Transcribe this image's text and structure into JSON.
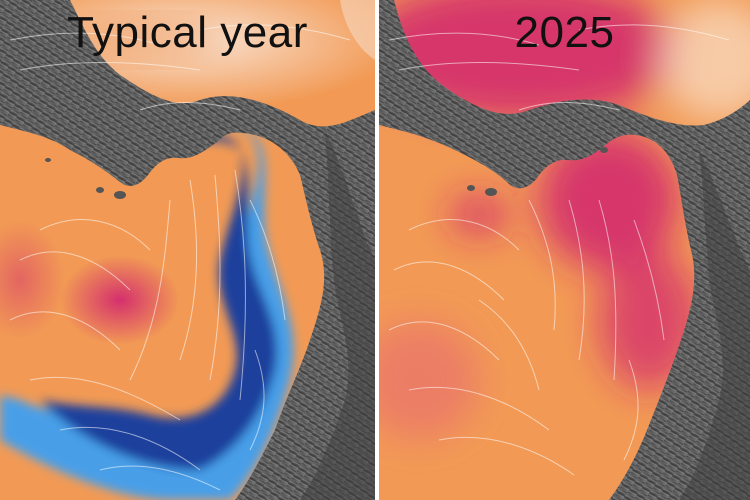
{
  "panels": [
    {
      "title": "Typical year",
      "sea_colors": {
        "warm": "#f29a55",
        "hot": "#d1246f",
        "cool_light": "#3f9ff0",
        "cool_deep": "#1e3f9c"
      }
    },
    {
      "title": "2025",
      "sea_colors": {
        "warm": "#f29a55",
        "hot": "#d1246f",
        "pale": "#f7dccb"
      }
    }
  ],
  "land_color": "#5a5a5a",
  "flow_line_color": "#ffffff"
}
